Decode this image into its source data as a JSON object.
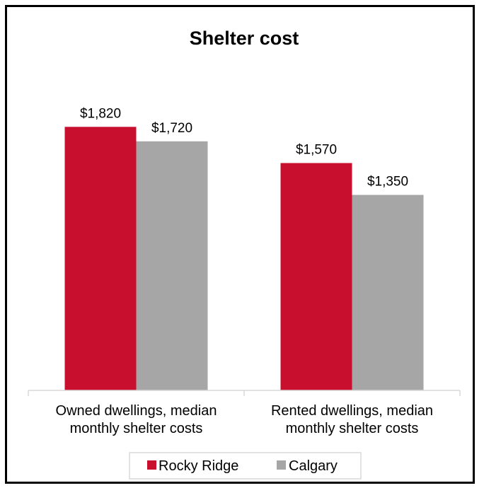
{
  "chart_data": {
    "type": "bar",
    "title": "Shelter cost",
    "categories": [
      [
        "Owned dwellings, median",
        "monthly shelter costs"
      ],
      [
        "Rented dwellings, median",
        "monthly shelter costs"
      ]
    ],
    "series": [
      {
        "name": "Rocky Ridge",
        "color": "#C8102E",
        "values": [
          1820,
          1570
        ],
        "labels": [
          "$1,820",
          "$1,570"
        ]
      },
      {
        "name": "Calgary",
        "color": "#A6A6A6",
        "values": [
          1720,
          1350
        ],
        "labels": [
          "$1,720",
          "$1,350"
        ]
      }
    ],
    "ylim": [
      0,
      2000
    ],
    "grid": false,
    "legend": "bottom-center",
    "axis_color": "#D9D9D9"
  }
}
